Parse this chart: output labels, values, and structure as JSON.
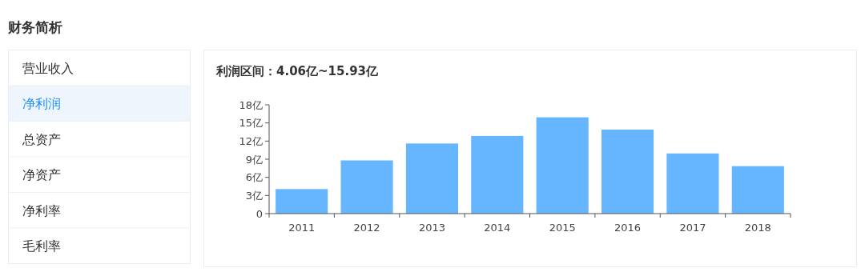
{
  "chart_data": [
    {
      "type": "other",
      "title": "财务简析",
      "annotations": [
        "营业收入",
        "净利润",
        "总资产",
        "净资产",
        "净利率",
        "毛利率"
      ]
    },
    {
      "type": "bar",
      "title": "利润区间：4.06亿~15.93亿",
      "categories": [
        "2011",
        "2012",
        "2013",
        "2014",
        "2015",
        "2016",
        "2017",
        "2018"
      ],
      "values": [
        4.06,
        8.8,
        11.6,
        12.85,
        15.93,
        13.9,
        9.95,
        7.85
      ],
      "color": "#66b5ff",
      "ylim": [
        0,
        18
      ],
      "yticks": [
        0,
        {
          "value": 3,
          "label": "3亿"
        },
        {
          "value": 6,
          "label": "6亿"
        },
        {
          "value": 9,
          "label": "9亿"
        },
        {
          "value": 12,
          "label": "12亿"
        },
        {
          "value": 15,
          "label": "15亿"
        },
        {
          "value": 18,
          "label": "18亿"
        }
      ],
      "grid": false
    }
  ]
}
